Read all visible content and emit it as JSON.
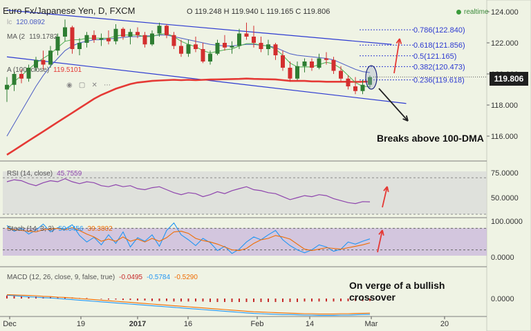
{
  "header": {
    "title": "Euro Fx/Japanese Yen, D, FXCM",
    "ohlc": "O 119.248 H 119.940 L 119.165 C 119.806",
    "status": "realtime",
    "last_price": "119.806"
  },
  "overlays": {
    "ma_short_value": "120.0892",
    "ma_mid_value": "119.1782",
    "ma100_label": "A (100, close)",
    "ma100_value": "119.5101"
  },
  "indicators": {
    "rsi_label": "RSI (14, close)",
    "rsi_value": "45.7559",
    "stoch_label": "Stoch (14, 3, 3)",
    "stoch_k": "50.6456",
    "stoch_d": "39.3802",
    "macd_label": "MACD (12, 26, close, 9, false, true)",
    "macd_hist": "-0.0495",
    "macd_line": "-0.5784",
    "macd_signal": "-0.5290"
  },
  "annotations": {
    "breakout": "Breaks above 100-DMA",
    "macd_note": "On verge of a bullish crossover"
  },
  "colors": {
    "background": "#eff3e4",
    "up_candle": "#2e7d32",
    "down_candle": "#d32f2f",
    "ma100": "#e53935",
    "ma_short": "#4a5bc4",
    "ma_green": "#4caf50",
    "channel": "#2d3ad1",
    "rsi": "#8e44ad",
    "stoch_k": "#2196f3",
    "stoch_d": "#ef6c00",
    "macd_hist": "#c62828",
    "arrows": "#e53935"
  },
  "chart_data": [
    {
      "type": "candlestick",
      "x_ticks": [
        "Dec",
        "19",
        "2017",
        "16",
        "Feb",
        "14",
        "Mar",
        "20"
      ],
      "y_ticks": [
        "124.000",
        "122.000",
        "120.000",
        "118.000",
        "116.000"
      ],
      "ylim": [
        114.8,
        124.3
      ],
      "fibonacci": [
        {
          "label": "0.786(122.840)",
          "value": 122.84
        },
        {
          "label": "0.618(121.856)",
          "value": 121.856
        },
        {
          "label": "0.5(121.165)",
          "value": 121.165
        },
        {
          "label": "0.382(120.473)",
          "value": 120.473
        },
        {
          "label": "0.236(119.618)",
          "value": 119.618
        }
      ],
      "ohlc": [
        [
          119.0,
          119.8,
          118.2,
          119.3
        ],
        [
          119.3,
          120.2,
          118.9,
          120.0
        ],
        [
          120.0,
          120.3,
          119.4,
          119.7
        ],
        [
          119.7,
          120.6,
          119.5,
          120.4
        ],
        [
          120.4,
          121.1,
          120.2,
          120.9
        ],
        [
          120.9,
          121.5,
          120.3,
          120.6
        ],
        [
          120.6,
          121.8,
          120.4,
          121.5
        ],
        [
          121.5,
          122.6,
          121.2,
          122.4
        ],
        [
          122.4,
          123.5,
          122.1,
          123.0
        ],
        [
          123.0,
          123.1,
          121.3,
          121.6
        ],
        [
          121.6,
          122.3,
          121.2,
          122.0
        ],
        [
          122.0,
          122.7,
          121.7,
          122.5
        ],
        [
          122.5,
          122.8,
          122.0,
          122.2
        ],
        [
          122.2,
          122.6,
          121.8,
          122.3
        ],
        [
          122.3,
          122.8,
          121.9,
          122.1
        ],
        [
          122.1,
          123.2,
          121.9,
          122.9
        ],
        [
          122.9,
          123.0,
          122.2,
          122.4
        ],
        [
          122.4,
          122.9,
          121.9,
          122.7
        ],
        [
          122.7,
          123.0,
          122.3,
          122.5
        ],
        [
          122.5,
          122.7,
          121.7,
          121.9
        ],
        [
          121.9,
          122.8,
          121.8,
          122.6
        ],
        [
          122.6,
          123.3,
          122.4,
          123.1
        ],
        [
          123.1,
          123.2,
          122.3,
          122.5
        ],
        [
          122.5,
          122.7,
          121.6,
          121.8
        ],
        [
          121.8,
          122.2,
          121.1,
          121.3
        ],
        [
          121.3,
          122.2,
          121.1,
          121.9
        ],
        [
          121.9,
          122.4,
          121.4,
          121.6
        ],
        [
          121.6,
          122.0,
          120.7,
          120.8
        ],
        [
          120.8,
          121.5,
          120.6,
          121.3
        ],
        [
          121.3,
          122.2,
          121.2,
          122.0
        ],
        [
          122.0,
          122.5,
          121.5,
          121.7
        ],
        [
          121.7,
          122.1,
          121.3,
          121.8
        ],
        [
          121.8,
          122.9,
          121.6,
          122.6
        ],
        [
          122.6,
          123.3,
          122.2,
          122.4
        ],
        [
          122.4,
          123.1,
          121.7,
          122.0
        ],
        [
          122.0,
          122.4,
          121.4,
          121.6
        ],
        [
          121.6,
          122.2,
          121.2,
          121.9
        ],
        [
          121.9,
          122.0,
          120.9,
          121.2
        ],
        [
          121.2,
          121.5,
          120.2,
          120.4
        ],
        [
          120.4,
          120.8,
          119.5,
          119.7
        ],
        [
          119.7,
          120.8,
          119.6,
          120.5
        ],
        [
          120.5,
          121.0,
          120.1,
          120.8
        ],
        [
          120.8,
          121.0,
          120.2,
          120.4
        ],
        [
          120.4,
          121.3,
          120.3,
          121.0
        ],
        [
          121.0,
          121.4,
          120.6,
          120.9
        ],
        [
          120.9,
          121.1,
          120.0,
          120.2
        ],
        [
          120.2,
          120.5,
          119.5,
          119.7
        ],
        [
          119.7,
          119.9,
          119.0,
          119.2
        ],
        [
          119.2,
          119.8,
          118.7,
          118.9
        ],
        [
          118.9,
          119.6,
          118.7,
          119.3
        ],
        [
          119.3,
          119.9,
          119.1,
          119.8
        ]
      ],
      "ma100": [
        114.8,
        115.1,
        115.4,
        115.7,
        116.0,
        116.3,
        116.6,
        116.9,
        117.2,
        117.5,
        117.8,
        118.1,
        118.4,
        118.65,
        118.85,
        119.05,
        119.2,
        119.35,
        119.45,
        119.5,
        119.55,
        119.58,
        119.6,
        119.62,
        119.6,
        119.62,
        119.6,
        119.62,
        119.64,
        119.65,
        119.66,
        119.67,
        119.68,
        119.7,
        119.68,
        119.67,
        119.66,
        119.65,
        119.6,
        119.55,
        119.55,
        119.55,
        119.52,
        119.52,
        119.5,
        119.5,
        119.5,
        119.5,
        119.49,
        119.5,
        119.51
      ],
      "ma_short": [
        116.0,
        116.8,
        117.6,
        118.4,
        119.2,
        119.9,
        120.5,
        121.0,
        121.5,
        121.8,
        122.0,
        122.1,
        122.2,
        122.2,
        122.25,
        122.3,
        122.35,
        122.4,
        122.4,
        122.45,
        122.45,
        122.5,
        122.5,
        122.4,
        122.3,
        122.2,
        122.1,
        122.0,
        121.9,
        121.85,
        121.8,
        121.8,
        121.85,
        121.9,
        121.9,
        121.85,
        121.8,
        121.7,
        121.5,
        121.3,
        121.2,
        121.15,
        121.1,
        121.05,
        121.0,
        120.9,
        120.7,
        120.5,
        120.3,
        120.15,
        120.09
      ],
      "ma_green": [
        119.0,
        119.5,
        119.9,
        120.3,
        120.7,
        121.0,
        121.3,
        121.7,
        122.1,
        122.2,
        122.2,
        122.3,
        122.3,
        122.3,
        122.3,
        122.45,
        122.5,
        122.5,
        122.5,
        122.4,
        122.4,
        122.55,
        122.6,
        122.4,
        122.1,
        121.9,
        121.75,
        121.5,
        121.35,
        121.45,
        121.55,
        121.6,
        121.8,
        121.95,
        121.95,
        121.85,
        121.8,
        121.6,
        121.2,
        120.7,
        120.45,
        120.45,
        120.45,
        120.6,
        120.75,
        120.65,
        120.35,
        119.9,
        119.45,
        119.2,
        119.18
      ],
      "channel": {
        "upper": [
          [
            0,
            124.1
          ],
          [
            53,
            121.9
          ]
        ],
        "lower": [
          [
            0,
            121.1
          ],
          [
            55,
            118.1
          ]
        ]
      }
    },
    {
      "type": "line",
      "name": "RSI",
      "y_ticks": [
        "75.0000",
        "50.0000"
      ],
      "ylim": [
        30,
        80
      ],
      "values": [
        66,
        68,
        67,
        64,
        62,
        65,
        67,
        66,
        69,
        66,
        64,
        66,
        65,
        62,
        61,
        63,
        61,
        62,
        59,
        58,
        60,
        61,
        58,
        55,
        53,
        55,
        54,
        51,
        53,
        56,
        54,
        57,
        59,
        61,
        58,
        57,
        55,
        54,
        51,
        48,
        50,
        52,
        51,
        53,
        52,
        49,
        47,
        45,
        44,
        46,
        45.76
      ]
    },
    {
      "type": "line",
      "name": "Stoch",
      "y_ticks": [
        "100.0000",
        "0.0000"
      ],
      "ylim": [
        -5,
        105
      ],
      "k": [
        88,
        72,
        80,
        64,
        75,
        92,
        70,
        82,
        78,
        90,
        60,
        42,
        55,
        34,
        62,
        38,
        70,
        28,
        54,
        44,
        62,
        30,
        74,
        95,
        62,
        48,
        32,
        52,
        40,
        18,
        30,
        10,
        22,
        42,
        56,
        48,
        62,
        74,
        48,
        32,
        20,
        12,
        20,
        34,
        28,
        16,
        22,
        42,
        36,
        44,
        50.6
      ],
      "d": [
        80,
        76,
        74,
        72,
        70,
        76,
        78,
        80,
        76,
        82,
        74,
        64,
        56,
        44,
        50,
        44,
        56,
        44,
        50,
        42,
        52,
        44,
        54,
        70,
        72,
        66,
        52,
        46,
        42,
        36,
        28,
        20,
        18,
        24,
        38,
        48,
        52,
        60,
        56,
        50,
        36,
        22,
        18,
        22,
        26,
        24,
        22,
        26,
        30,
        34,
        39.4
      ]
    },
    {
      "type": "line",
      "name": "MACD",
      "y_ticks": [
        "0.0000"
      ],
      "ylim": [
        -0.75,
        0.45
      ],
      "macd": [
        0.12,
        0.1,
        0.08,
        0.06,
        0.05,
        0.03,
        0.02,
        0.0,
        -0.02,
        -0.04,
        -0.06,
        -0.08,
        -0.1,
        -0.12,
        -0.14,
        -0.16,
        -0.18,
        -0.2,
        -0.22,
        -0.24,
        -0.26,
        -0.28,
        -0.3,
        -0.32,
        -0.34,
        -0.36,
        -0.38,
        -0.4,
        -0.42,
        -0.44,
        -0.46,
        -0.48,
        -0.5,
        -0.52,
        -0.54,
        -0.55,
        -0.56,
        -0.57,
        -0.58,
        -0.58,
        -0.59,
        -0.6,
        -0.6,
        -0.61,
        -0.61,
        -0.61,
        -0.6,
        -0.6,
        -0.59,
        -0.58,
        -0.578
      ],
      "signal": [
        0.14,
        0.13,
        0.12,
        0.11,
        0.1,
        0.08,
        0.07,
        0.05,
        0.04,
        0.02,
        0.0,
        -0.02,
        -0.04,
        -0.06,
        -0.08,
        -0.1,
        -0.12,
        -0.14,
        -0.16,
        -0.18,
        -0.2,
        -0.22,
        -0.24,
        -0.26,
        -0.28,
        -0.3,
        -0.32,
        -0.34,
        -0.36,
        -0.38,
        -0.4,
        -0.42,
        -0.44,
        -0.46,
        -0.48,
        -0.49,
        -0.5,
        -0.51,
        -0.52,
        -0.53,
        -0.54,
        -0.55,
        -0.55,
        -0.56,
        -0.56,
        -0.56,
        -0.55,
        -0.55,
        -0.54,
        -0.535,
        -0.529
      ],
      "hist": [
        0.06,
        0.05,
        0.05,
        0.04,
        0.04,
        0.03,
        0.03,
        0.02,
        0.02,
        0.02,
        0.01,
        0.01,
        0.0,
        -0.01,
        -0.02,
        -0.02,
        -0.03,
        -0.03,
        -0.04,
        -0.04,
        -0.05,
        -0.05,
        -0.05,
        -0.06,
        -0.06,
        -0.06,
        -0.06,
        -0.06,
        -0.07,
        -0.07,
        -0.07,
        -0.07,
        -0.07,
        -0.07,
        -0.07,
        -0.07,
        -0.07,
        -0.07,
        -0.07,
        -0.07,
        -0.07,
        -0.06,
        -0.06,
        -0.06,
        -0.06,
        -0.06,
        -0.055,
        -0.055,
        -0.05,
        -0.05,
        -0.0495
      ]
    }
  ]
}
